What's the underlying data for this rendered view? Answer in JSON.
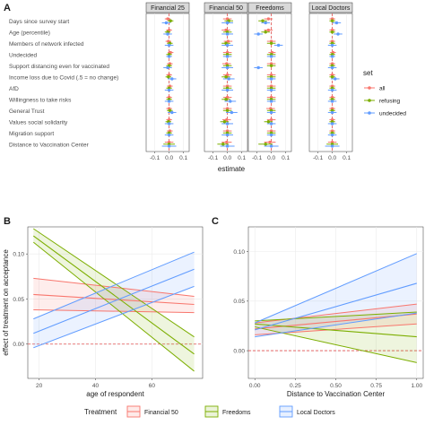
{
  "chart_data": [
    {
      "panel": "A",
      "type": "scatter",
      "facets": [
        "Financial 25",
        "Financial 50",
        "Freedoms",
        "Local Doctors"
      ],
      "categories": [
        "Days since survey start",
        "Age (percentile)",
        "Members of network infected",
        "Undecided",
        "Support distancing even for vaccinated",
        "Income loss due to Covid (.5 = no change)",
        "AfD",
        "Willingness to take risks",
        "General Trust",
        "Values social solidarity",
        "Migration support",
        "Distance to Vaccination Center"
      ],
      "xlabel": "estimate",
      "xticks": [
        "-0.1",
        "0.0",
        "0.1"
      ],
      "xlim": [
        -0.16,
        0.14
      ],
      "legend_title": "set",
      "legend_position": "right",
      "series": [
        {
          "name": "all",
          "color": "#f8766d",
          "facets": [
            {
              "est": [
                -0.01,
                0.0,
                -0.005,
                0.01,
                0.005,
                0.0,
                0.005,
                0.0,
                0.0,
                0.0,
                0.005,
                0.0
              ],
              "lo": [
                -0.03,
                -0.02,
                -0.025,
                -0.01,
                -0.015,
                -0.02,
                -0.015,
                -0.02,
                -0.02,
                -0.02,
                -0.015,
                -0.03
              ],
              "hi": [
                0.01,
                0.02,
                0.015,
                0.03,
                0.025,
                0.02,
                0.025,
                0.02,
                0.02,
                0.02,
                0.025,
                0.03
              ]
            },
            {
              "est": [
                0.0,
                -0.01,
                0.005,
                0.0,
                -0.005,
                0.0,
                0.0,
                0.0,
                0.0,
                -0.005,
                0.0,
                -0.005
              ],
              "lo": [
                -0.03,
                -0.04,
                -0.025,
                -0.03,
                -0.035,
                -0.03,
                -0.03,
                -0.03,
                -0.03,
                -0.035,
                -0.03,
                -0.04
              ],
              "hi": [
                0.03,
                0.02,
                0.035,
                0.03,
                0.025,
                0.03,
                0.03,
                0.03,
                0.03,
                0.025,
                0.03,
                0.03
              ]
            },
            {
              "est": [
                -0.02,
                -0.02,
                0.0,
                0.005,
                0.0,
                0.0,
                0.0,
                0.0,
                -0.005,
                0.0,
                0.0,
                -0.01
              ],
              "lo": [
                -0.05,
                -0.05,
                -0.03,
                -0.02,
                -0.03,
                -0.03,
                -0.03,
                -0.03,
                -0.035,
                -0.03,
                -0.03,
                -0.05
              ],
              "hi": [
                0.01,
                0.01,
                0.03,
                0.03,
                0.03,
                0.03,
                0.03,
                0.03,
                0.025,
                0.03,
                0.03,
                0.03
              ]
            },
            {
              "est": [
                0.0,
                0.0,
                0.0,
                0.005,
                0.0,
                0.0,
                0.0,
                0.0,
                0.0,
                0.0,
                0.0,
                0.0
              ],
              "lo": [
                -0.02,
                -0.02,
                -0.02,
                -0.015,
                -0.02,
                -0.02,
                -0.02,
                -0.02,
                -0.02,
                -0.02,
                -0.02,
                -0.03
              ],
              "hi": [
                0.02,
                0.02,
                0.02,
                0.025,
                0.02,
                0.02,
                0.02,
                0.02,
                0.02,
                0.02,
                0.02,
                0.03
              ]
            }
          ]
        },
        {
          "name": "refusing",
          "color": "#7cae00",
          "facets": [
            {
              "est": [
                0.01,
                -0.01,
                0.005,
                0.0,
                0.0,
                -0.005,
                0.0,
                0.0,
                0.005,
                -0.005,
                0.0,
                0.0
              ],
              "lo": [
                -0.01,
                -0.03,
                -0.015,
                -0.02,
                -0.02,
                -0.025,
                -0.02,
                -0.02,
                -0.015,
                -0.025,
                -0.02,
                -0.04
              ],
              "hi": [
                0.03,
                0.01,
                0.025,
                0.02,
                0.02,
                0.015,
                0.02,
                0.02,
                0.025,
                0.015,
                0.02,
                0.04
              ]
            },
            {
              "est": [
                0.01,
                0.0,
                -0.01,
                0.0,
                0.0,
                -0.01,
                0.0,
                -0.01,
                0.0,
                -0.02,
                0.0,
                -0.03
              ],
              "lo": [
                -0.02,
                -0.03,
                -0.04,
                -0.03,
                -0.03,
                -0.04,
                -0.03,
                -0.04,
                -0.03,
                -0.05,
                -0.03,
                -0.07
              ],
              "hi": [
                0.04,
                0.03,
                0.02,
                0.03,
                0.03,
                0.02,
                0.03,
                0.02,
                0.03,
                0.01,
                0.03,
                0.01
              ]
            },
            {
              "est": [
                -0.06,
                -0.04,
                0.0,
                0.0,
                0.0,
                0.0,
                0.0,
                0.0,
                0.0,
                -0.02,
                0.0,
                -0.04
              ],
              "lo": [
                -0.09,
                -0.07,
                -0.03,
                -0.03,
                -0.03,
                -0.03,
                -0.03,
                -0.03,
                -0.03,
                -0.05,
                -0.03,
                -0.09
              ],
              "hi": [
                -0.03,
                -0.01,
                0.03,
                0.03,
                0.03,
                0.03,
                0.03,
                0.03,
                0.03,
                0.01,
                0.03,
                0.01
              ]
            },
            {
              "est": [
                0.0,
                0.0,
                0.0,
                0.0,
                0.0,
                0.0,
                0.0,
                0.0,
                0.0,
                0.0,
                0.0,
                0.0
              ],
              "lo": [
                -0.02,
                -0.02,
                -0.02,
                -0.02,
                -0.02,
                -0.02,
                -0.02,
                -0.02,
                -0.02,
                -0.02,
                -0.02,
                -0.04
              ],
              "hi": [
                0.02,
                0.02,
                0.02,
                0.02,
                0.02,
                0.02,
                0.02,
                0.02,
                0.02,
                0.02,
                0.02,
                0.04
              ]
            }
          ]
        },
        {
          "name": "undecided",
          "color": "#619cff",
          "facets": [
            {
              "est": [
                -0.02,
                -0.01,
                0.0,
                0.0,
                -0.01,
                0.02,
                0.0,
                0.0,
                0.02,
                0.0,
                0.0,
                0.0
              ],
              "lo": [
                -0.05,
                -0.04,
                -0.03,
                -0.02,
                -0.04,
                -0.01,
                -0.03,
                -0.03,
                -0.01,
                -0.03,
                -0.03,
                -0.05
              ],
              "hi": [
                0.01,
                0.02,
                0.03,
                0.02,
                0.02,
                0.05,
                0.03,
                0.03,
                0.05,
                0.03,
                0.03,
                0.05
              ]
            },
            {
              "est": [
                0.0,
                0.0,
                0.0,
                0.0,
                0.0,
                0.01,
                0.0,
                0.02,
                0.03,
                0.0,
                0.0,
                0.0
              ],
              "lo": [
                -0.04,
                -0.04,
                -0.04,
                -0.03,
                -0.04,
                -0.03,
                -0.04,
                -0.02,
                -0.01,
                -0.04,
                -0.04,
                -0.05
              ],
              "hi": [
                0.04,
                0.04,
                0.04,
                0.03,
                0.04,
                0.05,
                0.04,
                0.06,
                0.07,
                0.04,
                0.04,
                0.05
              ]
            },
            {
              "est": [
                -0.04,
                -0.09,
                0.05,
                0.0,
                -0.09,
                0.0,
                0.0,
                0.0,
                0.0,
                0.0,
                0.0,
                0.0
              ],
              "lo": [
                -0.07,
                -0.12,
                0.02,
                -0.03,
                -0.12,
                -0.03,
                -0.03,
                -0.03,
                -0.03,
                -0.03,
                -0.03,
                -0.05
              ],
              "hi": [
                -0.01,
                -0.06,
                0.08,
                0.03,
                -0.06,
                0.03,
                0.03,
                0.03,
                0.03,
                0.03,
                0.03,
                0.05
              ]
            },
            {
              "est": [
                0.03,
                0.04,
                0.0,
                0.0,
                0.0,
                0.02,
                0.0,
                0.0,
                0.0,
                0.0,
                0.0,
                0.0
              ],
              "lo": [
                0.0,
                0.01,
                -0.03,
                -0.02,
                -0.03,
                -0.01,
                -0.03,
                -0.03,
                -0.03,
                -0.03,
                -0.03,
                -0.05
              ],
              "hi": [
                0.06,
                0.07,
                0.03,
                0.02,
                0.03,
                0.05,
                0.03,
                0.03,
                0.03,
                0.03,
                0.03,
                0.05
              ]
            }
          ]
        }
      ]
    },
    {
      "panel": "B",
      "type": "line",
      "xlabel": "age of respondent",
      "ylabel": "effect of treatment on acceptance",
      "xlim": [
        16,
        78
      ],
      "ylim": [
        -0.038,
        0.13
      ],
      "xticks": [
        "20",
        "40",
        "60"
      ],
      "xtick_values": [
        20,
        40,
        60
      ],
      "yticks": [
        "0.00",
        "0.05",
        "0.10"
      ],
      "ytick_values": [
        0.0,
        0.05,
        0.1
      ],
      "series": [
        {
          "name": "Financial 50",
          "color": "#f8766d",
          "x": [
            18,
            75
          ],
          "y": [
            0.055,
            0.044
          ],
          "lo": [
            0.038,
            0.035
          ],
          "hi": [
            0.073,
            0.053
          ]
        },
        {
          "name": "Freedoms",
          "color": "#7cae00",
          "x": [
            18,
            75
          ],
          "y": [
            0.12,
            -0.011
          ],
          "lo": [
            0.113,
            -0.03
          ],
          "hi": [
            0.128,
            0.008
          ]
        },
        {
          "name": "Local Doctors",
          "color": "#619cff",
          "x": [
            18,
            75
          ],
          "y": [
            0.012,
            0.083
          ],
          "lo": [
            -0.004,
            0.064
          ],
          "hi": [
            0.028,
            0.102
          ]
        }
      ]
    },
    {
      "panel": "C",
      "type": "line",
      "xlabel": "Distance to Vaccination Center",
      "xlim": [
        -0.04,
        1.04
      ],
      "ylim": [
        -0.028,
        0.125
      ],
      "xticks": [
        "0.00",
        "0.25",
        "0.50",
        "0.75",
        "1.00"
      ],
      "xtick_values": [
        0,
        0.25,
        0.5,
        0.75,
        1.0
      ],
      "yticks": [
        "0.00",
        "0.05",
        "0.10"
      ],
      "ytick_values": [
        0.0,
        0.05,
        0.1
      ],
      "series": [
        {
          "name": "Financial 50",
          "color": "#f8766d",
          "x": [
            0,
            1
          ],
          "y": [
            0.022,
            0.037
          ],
          "lo": [
            0.016,
            0.027
          ],
          "hi": [
            0.028,
            0.047
          ]
        },
        {
          "name": "Freedoms",
          "color": "#7cae00",
          "x": [
            0,
            1
          ],
          "y": [
            0.027,
            0.014
          ],
          "lo": [
            0.024,
            -0.012
          ],
          "hi": [
            0.03,
            0.039
          ]
        },
        {
          "name": "Local Doctors",
          "color": "#619cff",
          "x": [
            0,
            1
          ],
          "y": [
            0.021,
            0.068
          ],
          "lo": [
            0.014,
            0.038
          ],
          "hi": [
            0.028,
            0.098
          ]
        }
      ]
    }
  ],
  "labels": {
    "panel_a": "A",
    "panel_b": "B",
    "panel_c": "C"
  },
  "legend_bottom": {
    "title": "Treatment",
    "items": [
      {
        "name": "Financial 50",
        "color": "#f8766d"
      },
      {
        "name": "Freedoms",
        "color": "#7cae00"
      },
      {
        "name": "Local Doctors",
        "color": "#619cff"
      }
    ]
  }
}
